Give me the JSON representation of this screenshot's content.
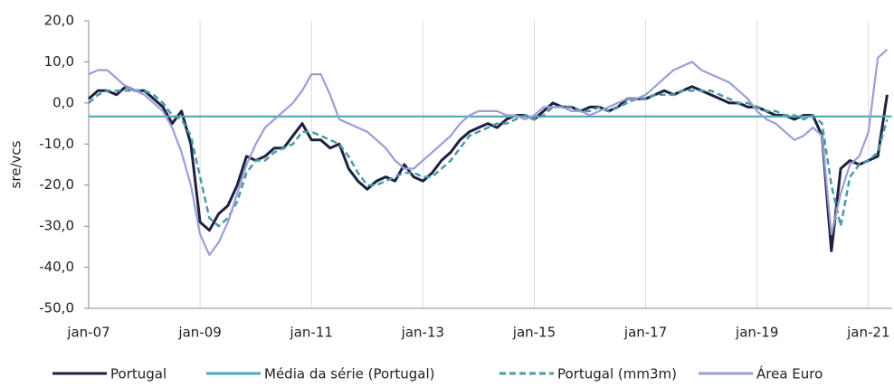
{
  "chart_data": {
    "type": "line",
    "y_label": "sre/vcs",
    "xlim": [
      0,
      173
    ],
    "xticks": [
      {
        "value": 0,
        "label": "jan-07"
      },
      {
        "value": 24,
        "label": "jan-09"
      },
      {
        "value": 48,
        "label": "jan-11"
      },
      {
        "value": 72,
        "label": "jan-13"
      },
      {
        "value": 96,
        "label": "jan-15"
      },
      {
        "value": 120,
        "label": "jan-17"
      },
      {
        "value": 144,
        "label": "jan-19"
      },
      {
        "value": 168,
        "label": "jan-21"
      }
    ],
    "ylim": [
      -50,
      20
    ],
    "yticks": [
      {
        "value": -50,
        "label": "-50,0"
      },
      {
        "value": -40,
        "label": "-40,0"
      },
      {
        "value": -30,
        "label": "-30,0"
      },
      {
        "value": -20,
        "label": "-20,0"
      },
      {
        "value": -10,
        "label": "-10,0"
      },
      {
        "value": 0,
        "label": "0,0"
      },
      {
        "value": 10,
        "label": "10,0"
      },
      {
        "value": 20,
        "label": "20,0"
      }
    ],
    "grid": true,
    "legend": "bottom",
    "x": [
      0,
      2,
      4,
      6,
      8,
      10,
      12,
      14,
      16,
      18,
      20,
      22,
      24,
      26,
      28,
      30,
      32,
      34,
      36,
      38,
      40,
      42,
      44,
      46,
      48,
      50,
      52,
      54,
      56,
      58,
      60,
      62,
      64,
      66,
      68,
      70,
      72,
      74,
      76,
      78,
      80,
      82,
      84,
      86,
      88,
      90,
      92,
      94,
      96,
      98,
      100,
      102,
      104,
      106,
      108,
      110,
      112,
      114,
      116,
      118,
      120,
      122,
      124,
      126,
      128,
      130,
      132,
      134,
      136,
      138,
      140,
      142,
      144,
      146,
      148,
      150,
      152,
      154,
      156,
      158,
      160,
      162,
      164,
      166,
      168,
      170,
      172
    ],
    "series": [
      {
        "name": "Portugal",
        "color": "#1c2140",
        "dash": false,
        "values": [
          1,
          3,
          3,
          2,
          4,
          3,
          3,
          1,
          -1,
          -5,
          -2,
          -10,
          -29,
          -31,
          -27,
          -25,
          -20,
          -13,
          -14,
          -13,
          -11,
          -11,
          -8,
          -5,
          -9,
          -9,
          -11,
          -10,
          -16,
          -19,
          -21,
          -19,
          -18,
          -19,
          -15,
          -18,
          -19,
          -17,
          -14,
          -12,
          -9,
          -7,
          -6,
          -5,
          -6,
          -4,
          -3,
          -3,
          -4,
          -2,
          0,
          -1,
          -1,
          -2,
          -1,
          -1,
          -2,
          -1,
          1,
          1,
          1,
          2,
          3,
          2,
          3,
          4,
          3,
          2,
          1,
          0,
          0,
          -1,
          -1,
          -2,
          -3,
          -3,
          -4,
          -3,
          -3,
          -8,
          -36,
          -16,
          -14,
          -15,
          -14,
          -13,
          2
        ]
      },
      {
        "name": "Média da série (Portugal)",
        "color": "#4aa8b8",
        "dash": false,
        "x": [
          0,
          173
        ],
        "values": [
          -3.3,
          -3.3
        ]
      },
      {
        "name": "Portugal (mm3m)",
        "color": "#4a9aa6",
        "dash": true,
        "values": [
          0,
          2,
          3,
          3,
          3,
          3,
          3,
          2,
          0,
          -3,
          -4,
          -8,
          -18,
          -28,
          -30,
          -28,
          -24,
          -17,
          -14,
          -14,
          -12,
          -11,
          -10,
          -7,
          -7,
          -8,
          -9,
          -10,
          -13,
          -17,
          -20,
          -20,
          -19,
          -18,
          -17,
          -17,
          -18,
          -18,
          -16,
          -14,
          -11,
          -8,
          -7,
          -6,
          -5,
          -5,
          -4,
          -3,
          -4,
          -3,
          -1,
          -1,
          -1,
          -2,
          -2,
          -1,
          -2,
          -1,
          0,
          1,
          1,
          2,
          2,
          2,
          3,
          3,
          3,
          3,
          2,
          1,
          0,
          0,
          -1,
          -2,
          -2,
          -3,
          -3,
          -4,
          -3,
          -5,
          -20,
          -30,
          -18,
          -15,
          -14,
          -12,
          -4
        ]
      },
      {
        "name": "Área Euro",
        "color": "#9a9ed6",
        "dash": false,
        "values": [
          7,
          8,
          8,
          6,
          4,
          3,
          2,
          0,
          -2,
          -6,
          -12,
          -20,
          -32,
          -37,
          -34,
          -29,
          -22,
          -15,
          -10,
          -6,
          -4,
          -2,
          0,
          3,
          7,
          7,
          2,
          -4,
          -5,
          -6,
          -7,
          -9,
          -11,
          -14,
          -16,
          -16,
          -14,
          -12,
          -10,
          -8,
          -5,
          -3,
          -2,
          -2,
          -2,
          -3,
          -3,
          -4,
          -3,
          -1,
          -1,
          -1,
          -2,
          -2,
          -3,
          -2,
          -1,
          0,
          1,
          1,
          2,
          4,
          6,
          8,
          9,
          10,
          8,
          7,
          6,
          5,
          3,
          1,
          -2,
          -4,
          -5,
          -7,
          -9,
          -8,
          -6,
          -8,
          -32,
          -22,
          -15,
          -13,
          -7,
          11,
          13
        ]
      }
    ]
  }
}
